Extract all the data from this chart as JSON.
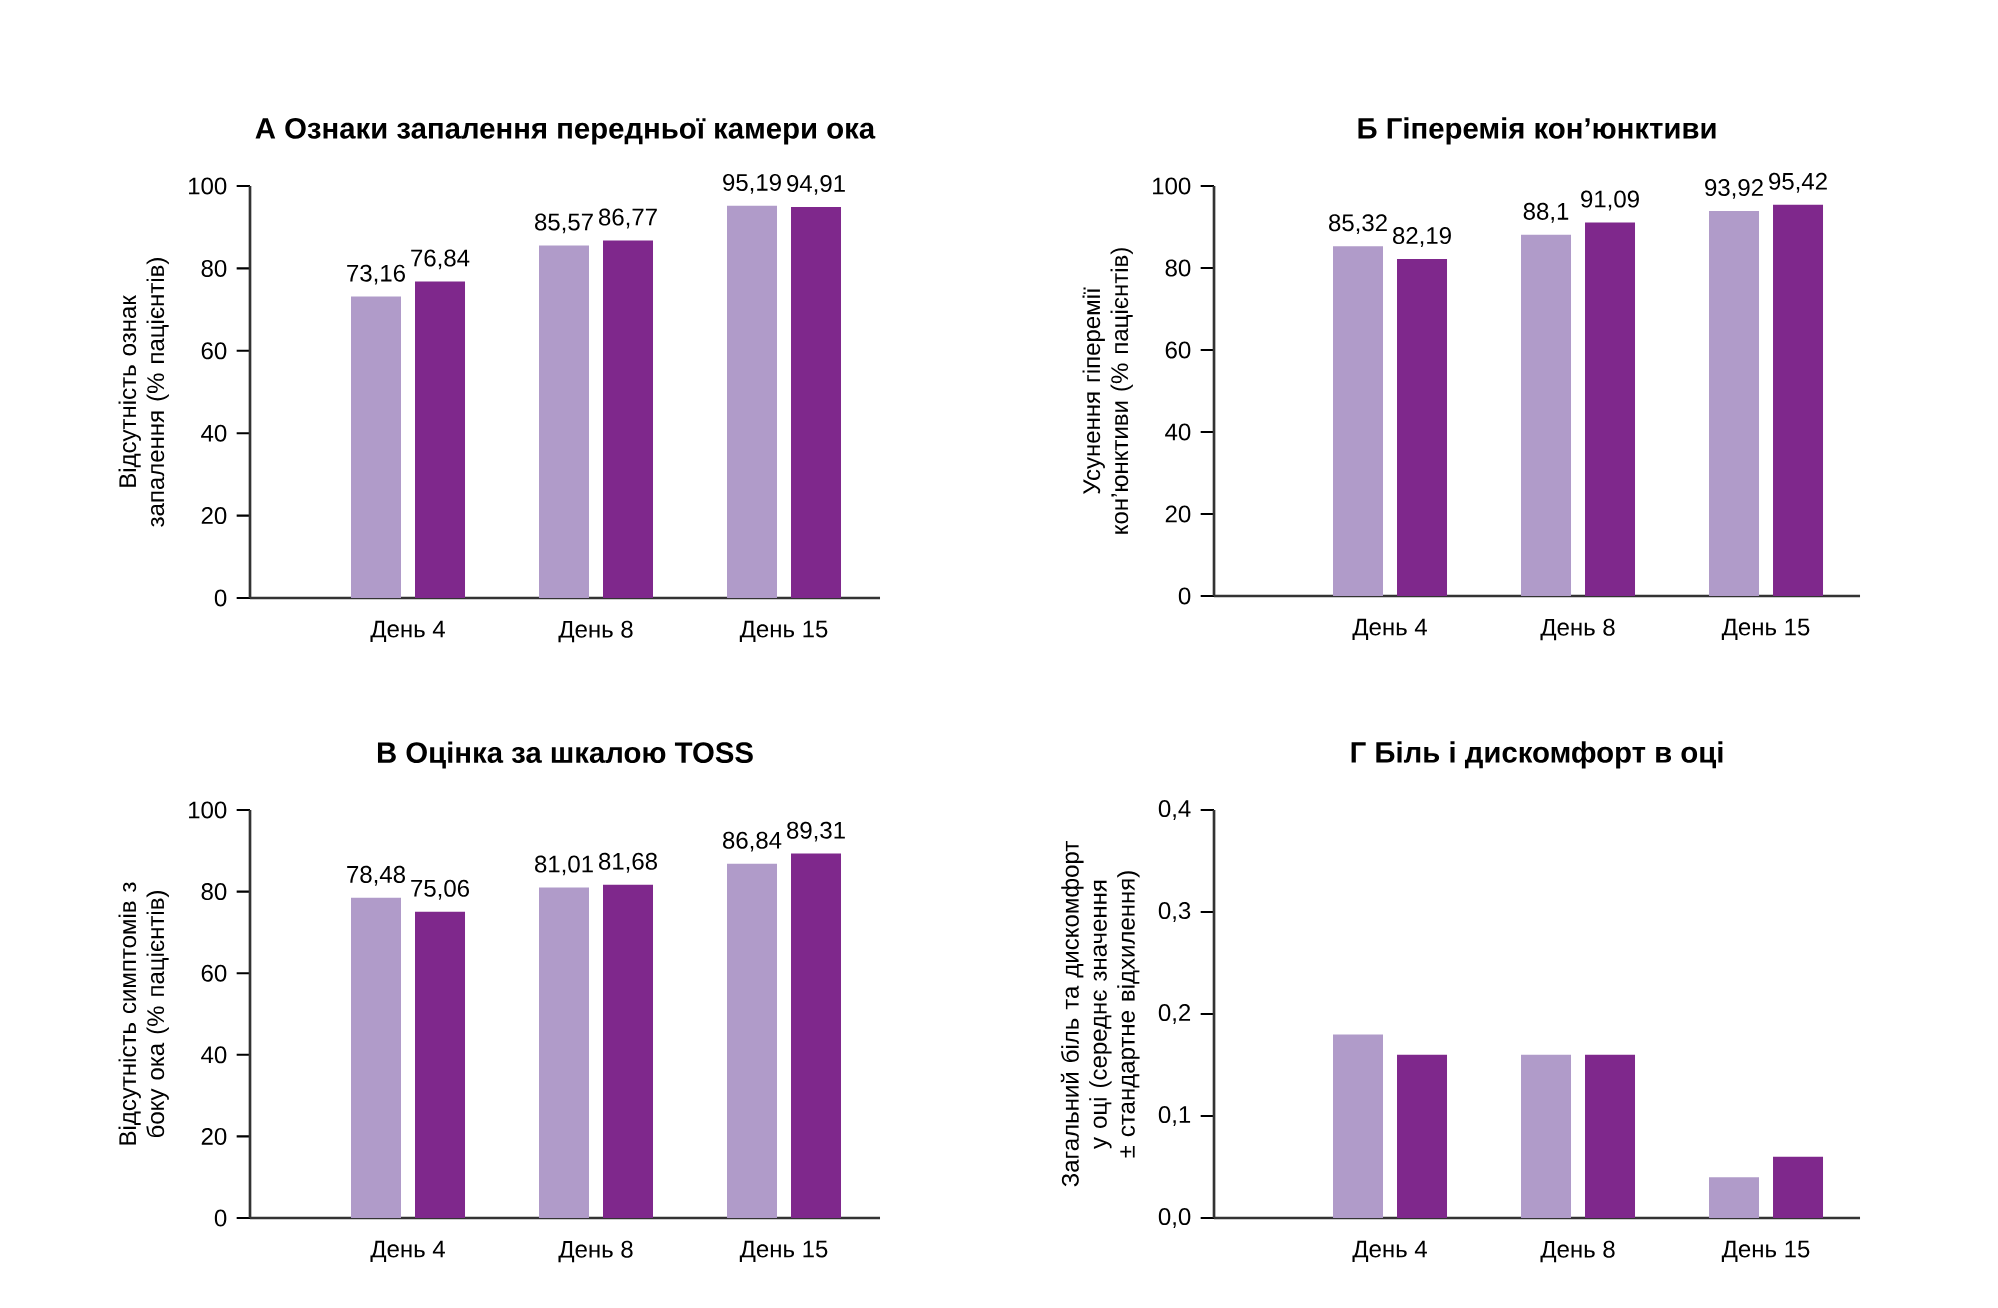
{
  "chart_data": [
    {
      "type": "bar",
      "title": "А Ознаки запалення передньої камери ока",
      "ylabel": "Відсутність ознак запалення (% пацієнтів)",
      "categories": [
        "День 4",
        "День 8",
        "День 15"
      ],
      "ylim": [
        0,
        100
      ],
      "yticks": [
        0,
        20,
        40,
        60,
        80,
        100
      ],
      "series": [
        {
          "color": "#b09bc9",
          "values": [
            73.16,
            85.57,
            95.19
          ],
          "value_labels": [
            "73,16",
            "85,57",
            "95,19"
          ]
        },
        {
          "color": "#7f288c",
          "values": [
            76.84,
            86.77,
            94.91
          ],
          "value_labels": [
            "76,84",
            "86,77",
            "94,91"
          ]
        }
      ]
    },
    {
      "type": "bar",
      "title": "Б Гіперемія кон’юнктиви",
      "ylabel": "Усунення гіперемії кон’юнктиви (% пацієнтів)",
      "categories": [
        "День 4",
        "День 8",
        "День 15"
      ],
      "ylim": [
        0,
        100
      ],
      "yticks": [
        0,
        20,
        40,
        60,
        80,
        100
      ],
      "series": [
        {
          "color": "#b09bc9",
          "values": [
            85.32,
            88.1,
            93.92
          ],
          "value_labels": [
            "85,32",
            "88,1",
            "93,92"
          ]
        },
        {
          "color": "#7f288c",
          "values": [
            82.19,
            91.09,
            95.42
          ],
          "value_labels": [
            "82,19",
            "91,09",
            "95,42"
          ]
        }
      ]
    },
    {
      "type": "bar",
      "title": "В Оцінка за шкалою TOSS",
      "ylabel": "Відсутність симптомів з боку ока (% пацієнтів)",
      "categories": [
        "День 4",
        "День 8",
        "День 15"
      ],
      "ylim": [
        0,
        100
      ],
      "yticks": [
        0,
        20,
        40,
        60,
        80,
        100
      ],
      "series": [
        {
          "color": "#b09bc9",
          "values": [
            78.48,
            81.01,
            86.84
          ],
          "value_labels": [
            "78,48",
            "81,01",
            "86,84"
          ]
        },
        {
          "color": "#7f288c",
          "values": [
            75.06,
            81.68,
            89.31
          ],
          "value_labels": [
            "75,06",
            "81,68",
            "89,31"
          ]
        }
      ]
    },
    {
      "type": "bar",
      "title": "Г Біль і дискомфорт в оці",
      "ylabel": "Загальний біль та дискомфорт у оці (середнє значення ± стандартне відхилення)",
      "categories": [
        "День 4",
        "День 8",
        "День 15"
      ],
      "ylim": [
        0,
        0.4
      ],
      "yticks": [
        {
          "value": 0,
          "label": "0,0"
        },
        {
          "value": 0.1,
          "label": "0,1"
        },
        {
          "value": 0.2,
          "label": "0,2"
        },
        {
          "value": 0.3,
          "label": "0,3"
        },
        {
          "value": 0.4,
          "label": "0,4"
        }
      ],
      "series": [
        {
          "color": "#b09bc9",
          "values": [
            0.18,
            0.16,
            0.04
          ]
        },
        {
          "color": "#7f288c",
          "values": [
            0.16,
            0.16,
            0.06
          ]
        }
      ]
    }
  ]
}
